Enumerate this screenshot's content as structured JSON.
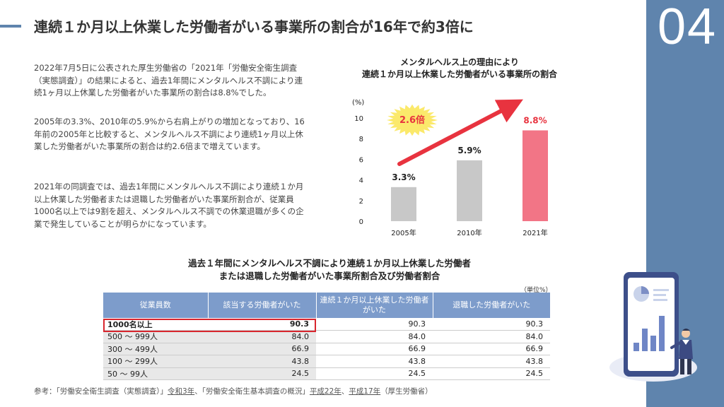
{
  "slide_number": "04",
  "title": "連続１か月以上休業した労働者がいる事業所の割合が16年で約3倍に",
  "paragraphs": [
    "2022年7月5日に公表された厚生労働省の「2021年「労働安全衛生調査（実態調査）」の結果によると、過去1年間にメンタルヘルス不調により連続1ヶ月以上休業した労働者がいた事業所の割合は8.8%でした。",
    "2005年の3.3%、2010年の5.9%から右肩上がりの増加となっており、16年前の2005年と比較すると、メンタルヘルス不調により連続1ヶ月以上休業した労働者がいた事業所の割合は約2.6倍まで増えています。",
    "2021年の同調査では、過去1年間にメンタルヘルス不調により連続１か月以上休業した労働者または退職した労働者がいた事業所割合が、従業員1000名以上では9割を超え、メンタルヘルス不調での休業退職が多くの企業で発生していることが明らかになっています。"
  ],
  "chart_title_line1": "メンタルヘルス上の理由により",
  "chart_title_line2": "連続１か月以上休業した労働者がいる事業所の割合",
  "chart_data": {
    "type": "bar",
    "categories": [
      "2005年",
      "2010年",
      "2021年"
    ],
    "values": [
      3.3,
      5.9,
      8.8
    ],
    "value_labels": [
      "3.3%",
      "5.9%",
      "8.8%"
    ],
    "ylabel": "(%)",
    "ylim": [
      0,
      10
    ],
    "yticks": [
      "0",
      "2",
      "4",
      "6",
      "8",
      "10"
    ],
    "colors": [
      "#c8c8c8",
      "#c8c8c8",
      "#f27586"
    ],
    "annotation": "2.6倍",
    "grid": false
  },
  "table": {
    "title_line1": "過去１年間にメンタルヘルス不調により連続１か月以上休業した労働者",
    "title_line2": "または退職した労働者がいた事業所割合及び労働者割合",
    "unit": "（単位%）",
    "headers": [
      "従業員数",
      "該当する労働者がいた",
      "連続１か月以上休業した労働者がいた",
      "退職した労働者がいた"
    ],
    "rows": [
      [
        "1000名以上",
        "90.3",
        "90.3",
        "90.3"
      ],
      [
        "500 ～ 999人",
        "84.0",
        "84.0",
        "84.0"
      ],
      [
        "300 ～ 499人",
        "66.9",
        "66.9",
        "66.9"
      ],
      [
        "100 ～ 299人",
        "43.8",
        "43.8",
        "43.8"
      ],
      [
        "50 ～ 99人",
        "24.5",
        "24.5",
        "24.5"
      ]
    ]
  },
  "reference": {
    "prefix": "参考：「労働安全衛生調査（実態調査）」",
    "link1": "令和3年",
    "mid": "、「労働安全衛生基本調査の概況」",
    "link2": "平成22年",
    "sep": "、",
    "link3": "平成17年",
    "suffix": "（厚生労働省）"
  },
  "colors": {
    "accent": "#5f84ad",
    "table_header": "#7d9ccb",
    "highlight_border": "#d8262e",
    "arrow": "#e8333f",
    "bar_highlight": "#f27586"
  }
}
